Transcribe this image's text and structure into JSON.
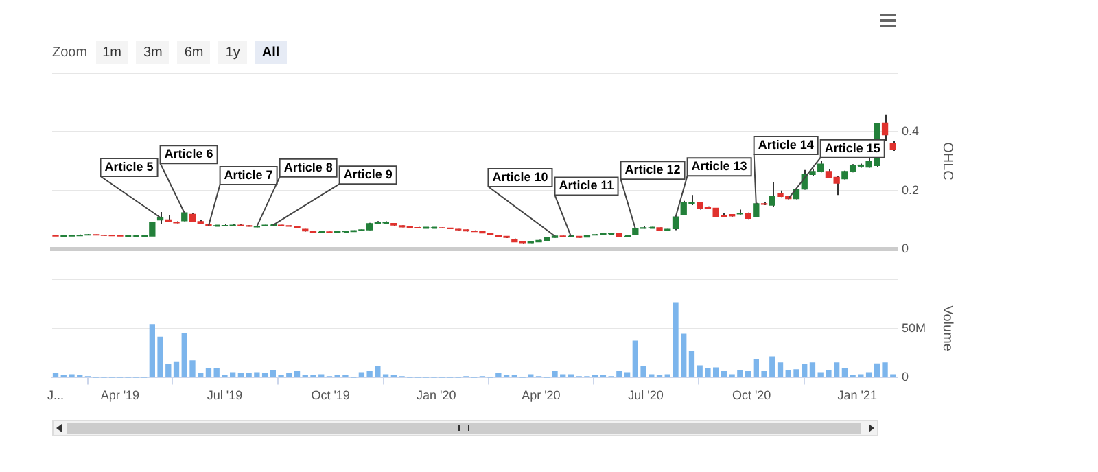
{
  "chart_data": [
    {
      "type": "candlestick",
      "ylabel": "OHLC",
      "tick_labels": "y",
      "grid": "y",
      "annotations": [
        "Zoom",
        "1m",
        "3m",
        "6m",
        "1y",
        "All",
        {
          "text": "Article 5",
          "x": "2019-05-06",
          "y": 0.108
        },
        {
          "text": "Article 6",
          "x": "2019-05-27",
          "y": 0.124
        },
        {
          "text": "Article 7",
          "x": "2019-06-17",
          "y": 0.08
        },
        {
          "text": "Article 8",
          "x": "2019-07-29",
          "y": 0.078
        },
        {
          "text": "Article 9",
          "x": "2019-08-12",
          "y": 0.082
        },
        {
          "text": "Article 10",
          "x": "2020-04-13",
          "y": 0.045
        },
        {
          "text": "Article 11",
          "x": "2020-04-27",
          "y": 0.044
        },
        {
          "text": "Article 12",
          "x": "2020-06-22",
          "y": 0.07
        },
        {
          "text": "Article 13",
          "x": "2020-07-27",
          "y": 0.11
        },
        {
          "text": "Article 14",
          "x": "2020-10-05",
          "y": 0.155
        },
        {
          "text": "Article 15",
          "x": "2020-11-02",
          "y": 0.172
        }
      ],
      "x": [
        "2019-02-04",
        "2019-02-11",
        "2019-02-18",
        "2019-02-25",
        "2019-03-04",
        "2019-03-11",
        "2019-03-18",
        "2019-03-25",
        "2019-04-01",
        "2019-04-08",
        "2019-04-15",
        "2019-04-22",
        "2019-04-29",
        "2019-05-06",
        "2019-05-13",
        "2019-05-20",
        "2019-05-27",
        "2019-06-03",
        "2019-06-10",
        "2019-06-17",
        "2019-06-24",
        "2019-07-01",
        "2019-07-08",
        "2019-07-15",
        "2019-07-22",
        "2019-07-29",
        "2019-08-05",
        "2019-08-12",
        "2019-08-19",
        "2019-08-26",
        "2019-09-02",
        "2019-09-09",
        "2019-09-16",
        "2019-09-23",
        "2019-09-30",
        "2019-10-07",
        "2019-10-14",
        "2019-10-21",
        "2019-10-28",
        "2019-11-04",
        "2019-11-11",
        "2019-11-18",
        "2019-11-25",
        "2019-12-02",
        "2019-12-09",
        "2019-12-16",
        "2019-12-23",
        "2019-12-30",
        "2020-01-06",
        "2020-01-13",
        "2020-01-20",
        "2020-01-27",
        "2020-02-03",
        "2020-02-10",
        "2020-02-17",
        "2020-02-24",
        "2020-03-02",
        "2020-03-09",
        "2020-03-16",
        "2020-03-23",
        "2020-03-30",
        "2020-04-06",
        "2020-04-13",
        "2020-04-20",
        "2020-04-27",
        "2020-05-04",
        "2020-05-11",
        "2020-05-18",
        "2020-05-25",
        "2020-06-01",
        "2020-06-08",
        "2020-06-15",
        "2020-06-22",
        "2020-06-29",
        "2020-07-06",
        "2020-07-13",
        "2020-07-20",
        "2020-07-27",
        "2020-08-03",
        "2020-08-10",
        "2020-08-17",
        "2020-08-24",
        "2020-08-31",
        "2020-09-07",
        "2020-09-14",
        "2020-09-21",
        "2020-09-28",
        "2020-10-05",
        "2020-10-12",
        "2020-10-19",
        "2020-10-26",
        "2020-11-02",
        "2020-11-09",
        "2020-11-16",
        "2020-11-23",
        "2020-11-30",
        "2020-12-07",
        "2020-12-14",
        "2020-12-21",
        "2020-12-28",
        "2021-01-04",
        "2021-01-11",
        "2021-01-18",
        "2021-01-25",
        "2021-02-01"
      ],
      "ohlc": [
        [
          0.046,
          0.047,
          0.045,
          0.045
        ],
        [
          0.045,
          0.046,
          0.044,
          0.045
        ],
        [
          0.045,
          0.047,
          0.045,
          0.046
        ],
        [
          0.046,
          0.05,
          0.046,
          0.048
        ],
        [
          0.048,
          0.052,
          0.047,
          0.05
        ],
        [
          0.05,
          0.05,
          0.047,
          0.048
        ],
        [
          0.048,
          0.048,
          0.046,
          0.047
        ],
        [
          0.047,
          0.047,
          0.046,
          0.046
        ],
        [
          0.046,
          0.046,
          0.045,
          0.045
        ],
        [
          0.045,
          0.046,
          0.045,
          0.045
        ],
        [
          0.045,
          0.046,
          0.045,
          0.045
        ],
        [
          0.045,
          0.046,
          0.044,
          0.045
        ],
        [
          0.045,
          0.092,
          0.045,
          0.09
        ],
        [
          0.1,
          0.127,
          0.085,
          0.108
        ],
        [
          0.1,
          0.115,
          0.093,
          0.095
        ],
        [
          0.092,
          0.095,
          0.088,
          0.09
        ],
        [
          0.097,
          0.13,
          0.095,
          0.124
        ],
        [
          0.119,
          0.122,
          0.092,
          0.094
        ],
        [
          0.094,
          0.1,
          0.085,
          0.087
        ],
        [
          0.085,
          0.1,
          0.078,
          0.08
        ],
        [
          0.08,
          0.082,
          0.078,
          0.08
        ],
        [
          0.08,
          0.085,
          0.078,
          0.081
        ],
        [
          0.081,
          0.086,
          0.079,
          0.082
        ],
        [
          0.082,
          0.085,
          0.079,
          0.08
        ],
        [
          0.08,
          0.082,
          0.077,
          0.078
        ],
        [
          0.076,
          0.08,
          0.075,
          0.078
        ],
        [
          0.08,
          0.083,
          0.078,
          0.082
        ],
        [
          0.082,
          0.084,
          0.08,
          0.082
        ],
        [
          0.082,
          0.083,
          0.079,
          0.08
        ],
        [
          0.08,
          0.081,
          0.077,
          0.078
        ],
        [
          0.078,
          0.078,
          0.071,
          0.073
        ],
        [
          0.068,
          0.069,
          0.06,
          0.062
        ],
        [
          0.062,
          0.063,
          0.057,
          0.058
        ],
        [
          0.058,
          0.06,
          0.057,
          0.058
        ],
        [
          0.059,
          0.06,
          0.056,
          0.057
        ],
        [
          0.058,
          0.062,
          0.058,
          0.06
        ],
        [
          0.06,
          0.062,
          0.059,
          0.06
        ],
        [
          0.06,
          0.064,
          0.06,
          0.063
        ],
        [
          0.063,
          0.067,
          0.062,
          0.066
        ],
        [
          0.066,
          0.09,
          0.065,
          0.087
        ],
        [
          0.088,
          0.096,
          0.086,
          0.09
        ],
        [
          0.09,
          0.095,
          0.087,
          0.09
        ],
        [
          0.088,
          0.089,
          0.08,
          0.082
        ],
        [
          0.08,
          0.081,
          0.075,
          0.076
        ],
        [
          0.076,
          0.078,
          0.073,
          0.074
        ],
        [
          0.074,
          0.076,
          0.072,
          0.073
        ],
        [
          0.073,
          0.075,
          0.072,
          0.073
        ],
        [
          0.073,
          0.075,
          0.072,
          0.073
        ],
        [
          0.073,
          0.074,
          0.071,
          0.072
        ],
        [
          0.072,
          0.073,
          0.069,
          0.07
        ],
        [
          0.068,
          0.069,
          0.064,
          0.066
        ],
        [
          0.066,
          0.068,
          0.06,
          0.062
        ],
        [
          0.062,
          0.064,
          0.059,
          0.06
        ],
        [
          0.06,
          0.061,
          0.054,
          0.055
        ],
        [
          0.055,
          0.056,
          0.049,
          0.05
        ],
        [
          0.048,
          0.049,
          0.042,
          0.044
        ],
        [
          0.044,
          0.045,
          0.038,
          0.04
        ],
        [
          0.034,
          0.036,
          0.024,
          0.025
        ],
        [
          0.025,
          0.026,
          0.02,
          0.022
        ],
        [
          0.022,
          0.027,
          0.021,
          0.025
        ],
        [
          0.025,
          0.032,
          0.024,
          0.03
        ],
        [
          0.03,
          0.041,
          0.029,
          0.04
        ],
        [
          0.04,
          0.046,
          0.039,
          0.045
        ],
        [
          0.045,
          0.046,
          0.043,
          0.044
        ],
        [
          0.044,
          0.046,
          0.043,
          0.044
        ],
        [
          0.044,
          0.045,
          0.039,
          0.04
        ],
        [
          0.041,
          0.049,
          0.04,
          0.048
        ],
        [
          0.048,
          0.052,
          0.047,
          0.05
        ],
        [
          0.05,
          0.055,
          0.049,
          0.053
        ],
        [
          0.053,
          0.055,
          0.051,
          0.053
        ],
        [
          0.053,
          0.054,
          0.043,
          0.044
        ],
        [
          0.044,
          0.046,
          0.043,
          0.044
        ],
        [
          0.05,
          0.072,
          0.049,
          0.07
        ],
        [
          0.071,
          0.078,
          0.07,
          0.073
        ],
        [
          0.073,
          0.076,
          0.071,
          0.073
        ],
        [
          0.073,
          0.074,
          0.064,
          0.065
        ],
        [
          0.065,
          0.069,
          0.064,
          0.068
        ],
        [
          0.07,
          0.112,
          0.065,
          0.11
        ],
        [
          0.117,
          0.165,
          0.115,
          0.16
        ],
        [
          0.156,
          0.185,
          0.15,
          0.158
        ],
        [
          0.158,
          0.162,
          0.135,
          0.138
        ],
        [
          0.143,
          0.146,
          0.138,
          0.14
        ],
        [
          0.14,
          0.141,
          0.108,
          0.11
        ],
        [
          0.114,
          0.122,
          0.11,
          0.112
        ],
        [
          0.118,
          0.12,
          0.111,
          0.113
        ],
        [
          0.12,
          0.135,
          0.118,
          0.123
        ],
        [
          0.123,
          0.125,
          0.103,
          0.105
        ],
        [
          0.11,
          0.158,
          0.108,
          0.155
        ],
        [
          0.155,
          0.16,
          0.15,
          0.153
        ],
        [
          0.15,
          0.23,
          0.145,
          0.18
        ],
        [
          0.19,
          0.2,
          0.178,
          0.18
        ],
        [
          0.18,
          0.182,
          0.17,
          0.172
        ],
        [
          0.172,
          0.208,
          0.17,
          0.205
        ],
        [
          0.205,
          0.27,
          0.203,
          0.255
        ],
        [
          0.255,
          0.275,
          0.25,
          0.265
        ],
        [
          0.265,
          0.3,
          0.262,
          0.29
        ],
        [
          0.265,
          0.272,
          0.242,
          0.245
        ],
        [
          0.245,
          0.25,
          0.185,
          0.225
        ],
        [
          0.24,
          0.268,
          0.238,
          0.265
        ],
        [
          0.265,
          0.29,
          0.262,
          0.285
        ],
        [
          0.285,
          0.292,
          0.278,
          0.285
        ],
        [
          0.28,
          0.31,
          0.278,
          0.3
        ],
        [
          0.285,
          0.43,
          0.28,
          0.427
        ],
        [
          0.43,
          0.46,
          0.37,
          0.39
        ],
        [
          0.36,
          0.37,
          0.335,
          0.34
        ]
      ],
      "colors": [
        "#e0322e",
        "#23803a",
        "#23803a",
        "#23803a",
        "#23803a",
        "#e0322e",
        "#e0322e",
        "#e0322e",
        "#e0322e",
        "#23803a",
        "#23803a",
        "#23803a",
        "#23803a",
        "#23803a",
        "#e0322e",
        "#e0322e",
        "#23803a",
        "#e0322e",
        "#e0322e",
        "#e0322e",
        "#23803a",
        "#23803a",
        "#23803a",
        "#e0322e",
        "#e0322e",
        "#23803a",
        "#23803a",
        "#23803a",
        "#e0322e",
        "#e0322e",
        "#e0322e",
        "#e0322e",
        "#e0322e",
        "#23803a",
        "#e0322e",
        "#23803a",
        "#23803a",
        "#23803a",
        "#23803a",
        "#23803a",
        "#23803a",
        "#23803a",
        "#e0322e",
        "#e0322e",
        "#e0322e",
        "#e0322e",
        "#23803a",
        "#23803a",
        "#e0322e",
        "#e0322e",
        "#e0322e",
        "#e0322e",
        "#e0322e",
        "#e0322e",
        "#e0322e",
        "#e0322e",
        "#e0322e",
        "#e0322e",
        "#e0322e",
        "#23803a",
        "#23803a",
        "#23803a",
        "#23803a",
        "#e0322e",
        "#23803a",
        "#e0322e",
        "#23803a",
        "#23803a",
        "#23803a",
        "#23803a",
        "#e0322e",
        "#23803a",
        "#23803a",
        "#23803a",
        "#23803a",
        "#e0322e",
        "#23803a",
        "#23803a",
        "#23803a",
        "#23803a",
        "#e0322e",
        "#e0322e",
        "#e0322e",
        "#e0322e",
        "#e0322e",
        "#23803a",
        "#e0322e",
        "#23803a",
        "#e0322e",
        "#23803a",
        "#e0322e",
        "#e0322e",
        "#23803a",
        "#23803a",
        "#23803a",
        "#23803a",
        "#e0322e",
        "#e0322e",
        "#23803a",
        "#23803a",
        "#23803a",
        "#23803a",
        "#23803a",
        "#e0322e",
        "#e0322e"
      ],
      "xlim": [
        "2019-02-01",
        "2021-02-05"
      ],
      "ylim": [
        0,
        0.6
      ],
      "yticks": [
        0,
        0.2,
        0.4,
        {
          "value": 0.6,
          "label": null
        }
      ]
    },
    {
      "type": "bar",
      "ylabel": "Volume",
      "grid": "y",
      "color": "#7cb5ec",
      "x": [
        "2019-02-04",
        "2019-02-11",
        "2019-02-18",
        "2019-02-25",
        "2019-03-04",
        "2019-03-11",
        "2019-03-18",
        "2019-03-25",
        "2019-04-01",
        "2019-04-08",
        "2019-04-15",
        "2019-04-22",
        "2019-04-29",
        "2019-05-06",
        "2019-05-13",
        "2019-05-20",
        "2019-05-27",
        "2019-06-03",
        "2019-06-10",
        "2019-06-17",
        "2019-06-24",
        "2019-07-01",
        "2019-07-08",
        "2019-07-15",
        "2019-07-22",
        "2019-07-29",
        "2019-08-05",
        "2019-08-12",
        "2019-08-19",
        "2019-08-26",
        "2019-09-02",
        "2019-09-09",
        "2019-09-16",
        "2019-09-23",
        "2019-09-30",
        "2019-10-07",
        "2019-10-14",
        "2019-10-21",
        "2019-10-28",
        "2019-11-04",
        "2019-11-11",
        "2019-11-18",
        "2019-11-25",
        "2019-12-02",
        "2019-12-09",
        "2019-12-16",
        "2019-12-23",
        "2019-12-30",
        "2020-01-06",
        "2020-01-13",
        "2020-01-20",
        "2020-01-27",
        "2020-02-03",
        "2020-02-10",
        "2020-02-17",
        "2020-02-24",
        "2020-03-02",
        "2020-03-09",
        "2020-03-16",
        "2020-03-23",
        "2020-03-30",
        "2020-04-06",
        "2020-04-13",
        "2020-04-20",
        "2020-04-27",
        "2020-05-04",
        "2020-05-11",
        "2020-05-18",
        "2020-05-25",
        "2020-06-01",
        "2020-06-08",
        "2020-06-15",
        "2020-06-22",
        "2020-06-29",
        "2020-07-06",
        "2020-07-13",
        "2020-07-20",
        "2020-07-27",
        "2020-08-03",
        "2020-08-10",
        "2020-08-17",
        "2020-08-24",
        "2020-08-31",
        "2020-09-07",
        "2020-09-14",
        "2020-09-21",
        "2020-09-28",
        "2020-10-05",
        "2020-10-12",
        "2020-10-19",
        "2020-10-26",
        "2020-11-02",
        "2020-11-09",
        "2020-11-16",
        "2020-11-23",
        "2020-11-30",
        "2020-12-07",
        "2020-12-14",
        "2020-12-21",
        "2020-12-28",
        "2021-01-04",
        "2021-01-11",
        "2021-01-18",
        "2021-01-25",
        "2021-02-01"
      ],
      "values": [
        4000000,
        2000000,
        3000000,
        2000000,
        1000000,
        0,
        0,
        0,
        0,
        0,
        0,
        0,
        54000000,
        41000000,
        13000000,
        16000000,
        45000000,
        17000000,
        4000000,
        9000000,
        9000000,
        2000000,
        5000000,
        4000000,
        4000000,
        5000000,
        4000000,
        7000000,
        2000000,
        4000000,
        6000000,
        2000000,
        2000000,
        3000000,
        1000000,
        2000000,
        2000000,
        0,
        5000000,
        6000000,
        11000000,
        3000000,
        2000000,
        1000000,
        0,
        0,
        0,
        0,
        0,
        0,
        0,
        1000000,
        0,
        1000000,
        0,
        4000000,
        2000000,
        2000000,
        0,
        3000000,
        1000000,
        0,
        6000000,
        3000000,
        3000000,
        1000000,
        1000000,
        2000000,
        2000000,
        1000000,
        6000000,
        5000000,
        37000000,
        11000000,
        3000000,
        2000000,
        3000000,
        76000000,
        44000000,
        27000000,
        12000000,
        9000000,
        10000000,
        6000000,
        3000000,
        7000000,
        6000000,
        18000000,
        6000000,
        21000000,
        15000000,
        7000000,
        8000000,
        13000000,
        15000000,
        5000000,
        7000000,
        15000000,
        9000000,
        2000000,
        3000000,
        5000000,
        14000000,
        15000000,
        3000000
      ],
      "xlim": [
        "2019-02-01",
        "2021-02-05"
      ],
      "xticks": [
        {
          "value": "2019-02-04",
          "label": "J..."
        },
        {
          "value": "2019-04-01",
          "label": "Apr '19"
        },
        {
          "value": "2019-07-01",
          "label": "Jul '19"
        },
        {
          "value": "2019-10-01",
          "label": "Oct '19"
        },
        {
          "value": "2020-01-01",
          "label": "Jan '20"
        },
        {
          "value": "2020-04-01",
          "label": "Apr '20"
        },
        {
          "value": "2020-07-01",
          "label": "Jul '20"
        },
        {
          "value": "2020-10-01",
          "label": "Oct '20"
        },
        {
          "value": "2021-01-01",
          "label": "Jan '21"
        }
      ],
      "ylim": [
        0,
        100000000
      ],
      "yticks": [
        0,
        {
          "value": 50000000,
          "label": "50M"
        },
        {
          "value": 100000000,
          "label": null
        }
      ]
    }
  ]
}
